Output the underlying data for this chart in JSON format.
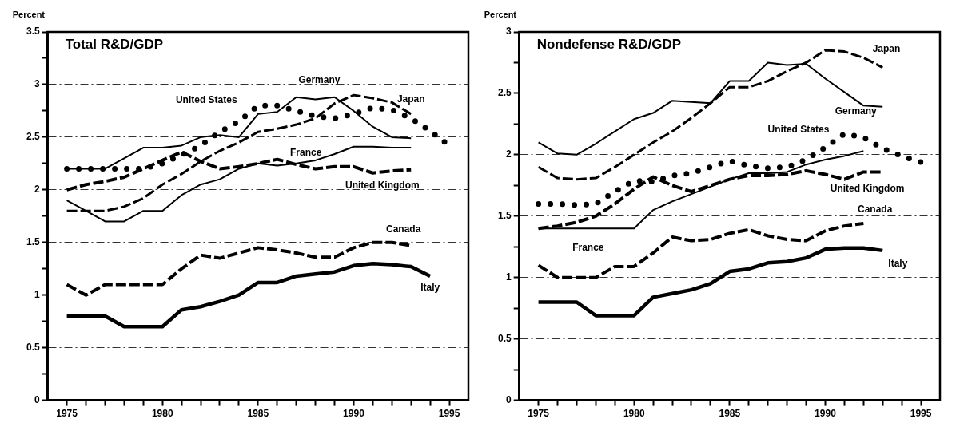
{
  "chart_data": [
    {
      "type": "line",
      "title": "Total R&D/GDP",
      "ylabel": "Percent",
      "x": [
        1975,
        1976,
        1977,
        1978,
        1979,
        1980,
        1981,
        1982,
        1983,
        1984,
        1985,
        1986,
        1987,
        1988,
        1989,
        1990,
        1991,
        1992,
        1993,
        1994,
        1995
      ],
      "series": [
        {
          "name": "United States",
          "color": "#000000",
          "line_style": "dotted",
          "values": [
            2.2,
            2.2,
            2.2,
            2.2,
            2.2,
            2.25,
            2.33,
            2.42,
            2.55,
            2.65,
            2.8,
            2.8,
            2.75,
            2.7,
            2.68,
            2.72,
            2.78,
            2.76,
            2.68,
            2.56,
            2.42
          ]
        },
        {
          "name": "Germany",
          "color": "#000000",
          "line_style": "solid",
          "values": [
            2.2,
            2.2,
            2.2,
            2.3,
            2.4,
            2.4,
            2.42,
            2.5,
            2.52,
            2.5,
            2.72,
            2.74,
            2.88,
            2.86,
            2.88,
            2.75,
            2.6,
            2.5,
            2.49,
            null,
            null
          ]
        },
        {
          "name": "Japan",
          "color": "#000000",
          "line_style": "dashed",
          "values": [
            1.8,
            1.8,
            1.8,
            1.84,
            1.92,
            2.05,
            2.15,
            2.27,
            2.37,
            2.45,
            2.55,
            2.58,
            2.62,
            2.68,
            2.82,
            2.9,
            2.87,
            2.83,
            2.72,
            null,
            null
          ]
        },
        {
          "name": "France",
          "color": "#000000",
          "line_style": "solid",
          "values": [
            1.9,
            1.8,
            1.7,
            1.7,
            1.8,
            1.8,
            1.95,
            2.05,
            2.1,
            2.2,
            2.25,
            2.23,
            2.25,
            2.28,
            2.34,
            2.41,
            2.41,
            2.4,
            2.4,
            null,
            null
          ]
        },
        {
          "name": "United Kingdom",
          "color": "#000000",
          "line_style": "dashed",
          "values": [
            2.0,
            2.05,
            2.08,
            2.12,
            2.2,
            2.28,
            2.36,
            2.27,
            2.2,
            2.22,
            2.25,
            2.29,
            2.24,
            2.2,
            2.22,
            2.22,
            2.16,
            2.18,
            2.19,
            null,
            null
          ]
        },
        {
          "name": "Canada",
          "color": "#000000",
          "line_style": "dashed",
          "values": [
            1.1,
            1.0,
            1.1,
            1.1,
            1.1,
            1.1,
            1.25,
            1.38,
            1.35,
            1.4,
            1.45,
            1.43,
            1.4,
            1.36,
            1.36,
            1.45,
            1.5,
            1.5,
            1.47,
            null,
            null
          ]
        },
        {
          "name": "Italy",
          "color": "#000000",
          "line_style": "solid",
          "values": [
            0.8,
            0.8,
            0.8,
            0.7,
            0.7,
            0.7,
            0.86,
            0.89,
            0.94,
            1.0,
            1.12,
            1.12,
            1.18,
            1.2,
            1.22,
            1.28,
            1.3,
            1.29,
            1.27,
            1.18,
            null
          ]
        }
      ],
      "xlim": [
        1974,
        1996
      ],
      "xticks": [
        1975,
        {
          "value": 1976,
          "label": null
        },
        {
          "value": 1977,
          "label": null
        },
        {
          "value": 1978,
          "label": null
        },
        {
          "value": 1979,
          "label": null
        },
        1980,
        {
          "value": 1981,
          "label": null
        },
        {
          "value": 1982,
          "label": null
        },
        {
          "value": 1983,
          "label": null
        },
        {
          "value": 1984,
          "label": null
        },
        1985,
        {
          "value": 1986,
          "label": null
        },
        {
          "value": 1987,
          "label": null
        },
        {
          "value": 1988,
          "label": null
        },
        {
          "value": 1989,
          "label": null
        },
        1990,
        {
          "value": 1991,
          "label": null
        },
        {
          "value": 1992,
          "label": null
        },
        {
          "value": 1993,
          "label": null
        },
        {
          "value": 1994,
          "label": null
        },
        1995
      ],
      "ylim": [
        0,
        3.5
      ],
      "yticks": [
        0,
        {
          "value": 0.25,
          "label": null
        },
        0.5,
        {
          "value": 0.75,
          "label": null
        },
        1,
        {
          "value": 1.25,
          "label": null
        },
        1.5,
        {
          "value": 1.75,
          "label": null
        },
        2,
        {
          "value": 2.25,
          "label": null
        },
        2.5,
        {
          "value": 2.75,
          "label": null
        },
        3,
        {
          "value": 3.25,
          "label": null
        },
        3.5
      ],
      "grid": "y"
    },
    {
      "type": "line",
      "title": "Nondefense R&D/GDP",
      "ylabel": "Percent",
      "x": [
        1975,
        1976,
        1977,
        1978,
        1979,
        1980,
        1981,
        1982,
        1983,
        1984,
        1985,
        1986,
        1987,
        1988,
        1989,
        1990,
        1991,
        1992,
        1993,
        1994,
        1995
      ],
      "series": [
        {
          "name": "United States",
          "color": "#000000",
          "line_style": "dotted",
          "values": [
            1.6,
            1.6,
            1.59,
            1.6,
            1.7,
            1.79,
            1.78,
            1.83,
            1.85,
            1.9,
            1.95,
            1.91,
            1.89,
            1.9,
            1.96,
            2.06,
            2.17,
            2.14,
            2.05,
            1.99,
            1.94
          ]
        },
        {
          "name": "Germany",
          "color": "#000000",
          "line_style": "solid",
          "values": [
            2.1,
            2.01,
            2.0,
            2.09,
            2.19,
            2.29,
            2.34,
            2.44,
            2.43,
            2.42,
            2.6,
            2.6,
            2.75,
            2.73,
            2.74,
            2.62,
            2.51,
            2.4,
            2.39,
            null,
            null
          ]
        },
        {
          "name": "Japan",
          "color": "#000000",
          "line_style": "dashed",
          "values": [
            1.9,
            1.81,
            1.8,
            1.81,
            1.9,
            2.0,
            2.1,
            2.19,
            2.3,
            2.42,
            2.55,
            2.55,
            2.6,
            2.68,
            2.75,
            2.85,
            2.84,
            2.79,
            2.71,
            null,
            null
          ]
        },
        {
          "name": "France",
          "color": "#000000",
          "line_style": "solid",
          "values": [
            1.4,
            1.4,
            1.4,
            1.4,
            1.4,
            1.4,
            1.55,
            1.62,
            1.68,
            1.74,
            1.8,
            1.85,
            1.85,
            1.86,
            1.92,
            1.96,
            1.99,
            2.03,
            null,
            null,
            null
          ]
        },
        {
          "name": "United Kingdom",
          "color": "#000000",
          "line_style": "dashed",
          "values": [
            1.4,
            1.42,
            1.45,
            1.5,
            1.6,
            1.72,
            1.82,
            1.75,
            1.7,
            1.75,
            1.8,
            1.83,
            1.83,
            1.84,
            1.87,
            1.84,
            1.8,
            1.86,
            1.86,
            null,
            null
          ]
        },
        {
          "name": "Canada",
          "color": "#000000",
          "line_style": "dashed",
          "values": [
            1.1,
            1.0,
            1.0,
            1.0,
            1.09,
            1.09,
            1.2,
            1.33,
            1.3,
            1.31,
            1.36,
            1.39,
            1.34,
            1.31,
            1.3,
            1.38,
            1.42,
            1.44,
            null,
            null,
            null
          ]
        },
        {
          "name": "Italy",
          "color": "#000000",
          "line_style": "solid",
          "values": [
            0.8,
            0.8,
            0.8,
            0.69,
            0.69,
            0.69,
            0.84,
            0.87,
            0.9,
            0.95,
            1.05,
            1.07,
            1.12,
            1.13,
            1.16,
            1.23,
            1.24,
            1.24,
            1.22,
            null,
            null
          ]
        }
      ],
      "xlim": [
        1974,
        1996
      ],
      "xticks": [
        1975,
        {
          "value": 1976,
          "label": null
        },
        {
          "value": 1977,
          "label": null
        },
        {
          "value": 1978,
          "label": null
        },
        {
          "value": 1979,
          "label": null
        },
        1980,
        {
          "value": 1981,
          "label": null
        },
        {
          "value": 1982,
          "label": null
        },
        {
          "value": 1983,
          "label": null
        },
        {
          "value": 1984,
          "label": null
        },
        1985,
        {
          "value": 1986,
          "label": null
        },
        {
          "value": 1987,
          "label": null
        },
        {
          "value": 1988,
          "label": null
        },
        {
          "value": 1989,
          "label": null
        },
        1990,
        {
          "value": 1991,
          "label": null
        },
        {
          "value": 1992,
          "label": null
        },
        {
          "value": 1993,
          "label": null
        },
        {
          "value": 1994,
          "label": null
        },
        1995
      ],
      "ylim": [
        0,
        3
      ],
      "yticks": [
        0,
        {
          "value": 0.25,
          "label": null
        },
        0.5,
        {
          "value": 0.75,
          "label": null
        },
        1,
        {
          "value": 1.25,
          "label": null
        },
        1.5,
        {
          "value": 1.75,
          "label": null
        },
        2,
        {
          "value": 2.25,
          "label": null
        },
        2.5,
        {
          "value": 2.75,
          "label": null
        },
        3
      ],
      "grid": "y"
    }
  ]
}
